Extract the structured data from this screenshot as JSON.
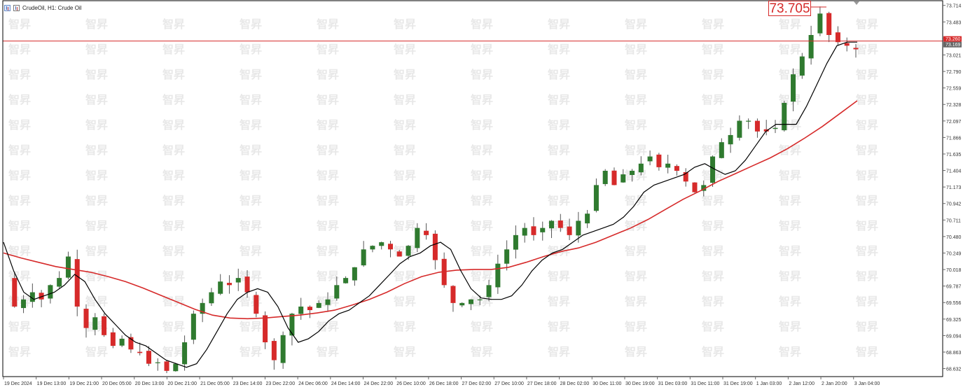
{
  "header": {
    "symbol_label": "CrudeOil, H1:  Crude Oil"
  },
  "price_callout": "73.705",
  "price_tags": {
    "upper": "73.260",
    "lower": "73.169"
  },
  "watermark": {
    "text": "智昇",
    "color": "#d6d6d6"
  },
  "colors": {
    "bull": "#d62a2a",
    "bear": "#2f7a2f",
    "ma_fast": "#000000",
    "ma_slow": "#d62a2a",
    "hline": "#d62a2a",
    "axis": "#666666",
    "grid": "#eeeeee",
    "tag_bg": "#d62a2a"
  },
  "chart_data": {
    "type": "line",
    "title": "CrudeOil, H1:  Crude Oil",
    "y_ticks": [
      "73.714",
      "73.483",
      "73.252",
      "73.021",
      "72.790",
      "72.559",
      "72.328",
      "72.097",
      "71.866",
      "71.635",
      "71.404",
      "71.173",
      "70.942",
      "70.711",
      "70.480",
      "70.249",
      "70.018",
      "69.787",
      "69.556",
      "69.325",
      "69.094",
      "68.863",
      "68.632"
    ],
    "y_range": [
      68.52,
      73.78
    ],
    "x_ticks": [
      "19 Dec 2024",
      "19 Dec 13:00",
      "19 Dec 21:00",
      "20 Dec 05:00",
      "20 Dec 13:00",
      "20 Dec 21:00",
      "21 Dec 05:00",
      "23 Dec 14:00",
      "23 Dec 22:00",
      "24 Dec 06:00",
      "24 Dec 14:00",
      "24 Dec 22:00",
      "26 Dec 10:00",
      "26 Dec 18:00",
      "27 Dec 02:00",
      "27 Dec 10:00",
      "27 Dec 18:00",
      "28 Dec 02:00",
      "30 Dec 11:00",
      "30 Dec 19:00",
      "31 Dec 03:00",
      "31 Dec 11:00",
      "31 Dec 19:00",
      "1 Jan 03:00",
      "2 Jan 12:00",
      "2 Jan 20:00",
      "3 Jan 04:00"
    ],
    "horizontal_line": 73.215,
    "series": [
      {
        "name": "",
        "style": "candles",
        "close_path": [
          69.9,
          69.5,
          69.6,
          69.7,
          69.6,
          69.8,
          69.9,
          70.2,
          69.5,
          69.2,
          69.35,
          69.1,
          68.95,
          69.05,
          68.9,
          68.85,
          68.7,
          68.72,
          68.6,
          68.7,
          69.0,
          69.4,
          69.55,
          69.7,
          69.85,
          69.8,
          69.9,
          69.7,
          69.4,
          69.0,
          68.75,
          69.1,
          69.4,
          69.5,
          69.45,
          69.55,
          69.6,
          69.8,
          69.9,
          70.05,
          70.3,
          70.35,
          70.4,
          70.3,
          70.2,
          70.35,
          70.6,
          70.5,
          70.15,
          69.8,
          69.55,
          69.55,
          69.6,
          69.6,
          69.8,
          70.1,
          70.3,
          70.5,
          70.6,
          70.5,
          70.6,
          70.7,
          70.6,
          70.5,
          70.7,
          70.8,
          71.2,
          71.4,
          71.2,
          71.35,
          71.4,
          71.5,
          71.6,
          71.45,
          71.5,
          71.4,
          71.25,
          71.1,
          71.2,
          71.6,
          71.8,
          71.9,
          72.1,
          72.1,
          71.95,
          71.95,
          72.0,
          72.35,
          72.75,
          73.0,
          73.3,
          73.6,
          73.3,
          73.2,
          73.15,
          73.1
        ]
      },
      {
        "name": "",
        "style": "line",
        "role": "fast moving average",
        "values": [
          70.4,
          70.0,
          69.7,
          69.6,
          69.65,
          69.7,
          69.8,
          69.95,
          69.85,
          69.6,
          69.4,
          69.25,
          69.1,
          69.0,
          68.95,
          68.85,
          68.75,
          68.7,
          68.65,
          68.7,
          68.9,
          69.15,
          69.4,
          69.6,
          69.7,
          69.75,
          69.7,
          69.5,
          69.2,
          69.0,
          69.05,
          69.15,
          69.3,
          69.4,
          69.45,
          69.55,
          69.65,
          69.8,
          69.95,
          70.1,
          70.2,
          70.25,
          70.35,
          70.4,
          70.3,
          70.0,
          69.75,
          69.62,
          69.6,
          69.6,
          69.65,
          69.8,
          70.0,
          70.15,
          70.25,
          70.3,
          70.4,
          70.5,
          70.55,
          70.6,
          70.65,
          70.75,
          70.9,
          71.1,
          71.2,
          71.25,
          71.3,
          71.35,
          71.45,
          71.5,
          71.42,
          71.35,
          71.4,
          71.55,
          71.75,
          71.95,
          72.05,
          72.05,
          72.05,
          72.3,
          72.6,
          72.9,
          73.15,
          73.2,
          73.2
        ]
      },
      {
        "name": "",
        "style": "line",
        "role": "slow moving average",
        "values": [
          70.25,
          70.18,
          70.12,
          70.06,
          70.02,
          69.98,
          69.92,
          69.85,
          69.76,
          69.66,
          69.56,
          69.46,
          69.38,
          69.34,
          69.33,
          69.34,
          69.36,
          69.38,
          69.41,
          69.45,
          69.52,
          69.6,
          69.7,
          69.82,
          69.92,
          69.98,
          70.01,
          70.02,
          70.02,
          70.05,
          70.12,
          70.2,
          70.27,
          70.32,
          70.4,
          70.5,
          70.6,
          70.72,
          70.86,
          71.0,
          71.12,
          71.25,
          71.36,
          71.47,
          71.58,
          71.71,
          71.86,
          72.02,
          72.2,
          72.38
        ]
      }
    ]
  }
}
